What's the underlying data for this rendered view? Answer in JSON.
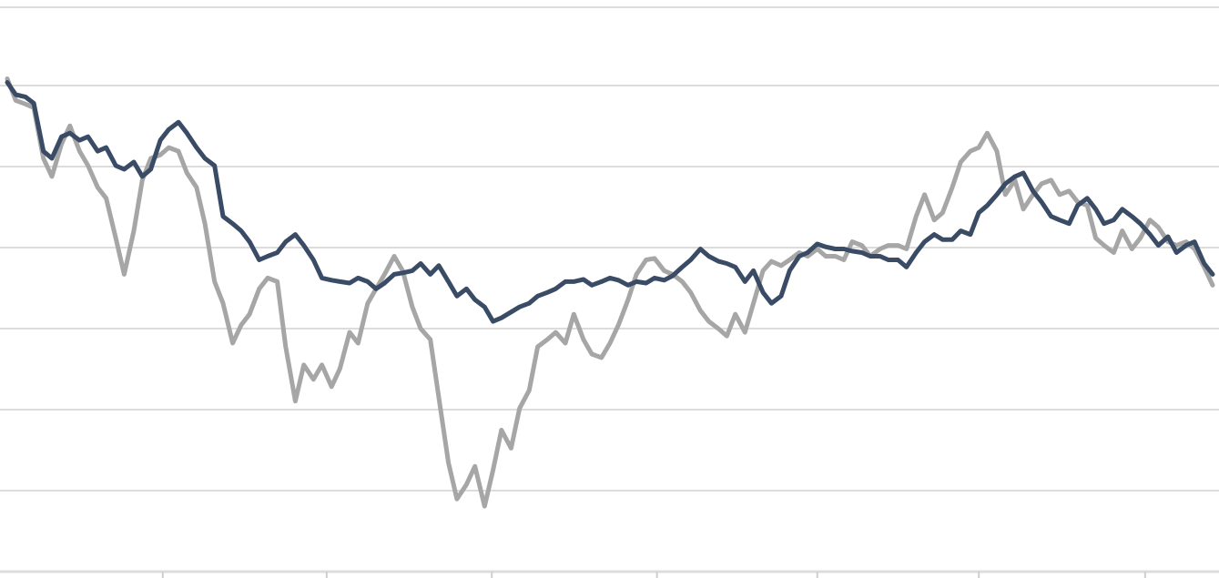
{
  "chart_data": {
    "type": "line",
    "title": "",
    "xlabel": "",
    "ylabel": "",
    "x_range": [
      0,
      1.0
    ],
    "ylim": [
      -0.5,
      6.5
    ],
    "y_gridlines": [
      0,
      1,
      2,
      3,
      4,
      5,
      6,
      7
    ],
    "x_ticks": [
      0.129,
      0.265,
      0.402,
      0.539,
      0.672,
      0.806,
      0.944
    ],
    "tick_labels_visible": false,
    "grid": true,
    "legend": "none",
    "series": [
      {
        "color": "#3a4b66",
        "x": [
          0.0,
          0.007,
          0.015,
          0.022,
          0.03,
          0.037,
          0.045,
          0.052,
          0.06,
          0.067,
          0.075,
          0.082,
          0.09,
          0.097,
          0.105,
          0.112,
          0.119,
          0.127,
          0.134,
          0.142,
          0.149,
          0.157,
          0.164,
          0.172,
          0.179,
          0.187,
          0.194,
          0.201,
          0.209,
          0.216,
          0.224,
          0.231,
          0.239,
          0.246,
          0.254,
          0.261,
          0.269,
          0.276,
          0.284,
          0.291,
          0.299,
          0.306,
          0.313,
          0.321,
          0.328,
          0.336,
          0.343,
          0.351,
          0.358,
          0.366,
          0.373,
          0.381,
          0.388,
          0.396,
          0.403,
          0.41,
          0.418,
          0.425,
          0.433,
          0.44,
          0.448,
          0.455,
          0.463,
          0.47,
          0.478,
          0.485,
          0.493,
          0.5,
          0.507,
          0.515,
          0.522,
          0.53,
          0.537,
          0.545,
          0.552,
          0.56,
          0.567,
          0.575,
          0.582,
          0.59,
          0.597,
          0.604,
          0.612,
          0.619,
          0.627,
          0.634,
          0.642,
          0.649,
          0.657,
          0.664,
          0.672,
          0.679,
          0.687,
          0.694,
          0.701,
          0.709,
          0.716,
          0.724,
          0.731,
          0.739,
          0.746,
          0.754,
          0.761,
          0.769,
          0.776,
          0.784,
          0.791,
          0.799,
          0.806,
          0.813,
          0.821,
          0.828,
          0.836,
          0.843,
          0.851,
          0.858,
          0.866,
          0.873,
          0.881,
          0.888,
          0.896,
          0.903,
          0.91,
          0.918,
          0.925,
          0.933,
          0.94,
          0.948,
          0.955,
          0.963,
          0.97,
          0.978,
          0.985,
          0.993,
          1.0
        ],
        "values": [
          6.15,
          5.98,
          5.95,
          5.86,
          5.2,
          5.1,
          5.4,
          5.45,
          5.35,
          5.4,
          5.2,
          5.25,
          5.0,
          4.95,
          5.05,
          4.85,
          4.95,
          5.35,
          5.5,
          5.6,
          5.45,
          5.25,
          5.1,
          5.0,
          4.3,
          4.2,
          4.1,
          3.95,
          3.7,
          3.75,
          3.8,
          3.95,
          4.05,
          3.9,
          3.7,
          3.45,
          3.42,
          3.4,
          3.38,
          3.45,
          3.4,
          3.3,
          3.38,
          3.5,
          3.52,
          3.55,
          3.65,
          3.5,
          3.62,
          3.4,
          3.2,
          3.3,
          3.15,
          3.05,
          2.85,
          2.9,
          2.98,
          3.05,
          3.1,
          3.2,
          3.25,
          3.3,
          3.4,
          3.4,
          3.43,
          3.35,
          3.4,
          3.45,
          3.42,
          3.35,
          3.4,
          3.38,
          3.45,
          3.42,
          3.48,
          3.6,
          3.7,
          3.85,
          3.75,
          3.68,
          3.65,
          3.6,
          3.4,
          3.55,
          3.25,
          3.1,
          3.2,
          3.55,
          3.75,
          3.8,
          3.92,
          3.88,
          3.85,
          3.85,
          3.82,
          3.8,
          3.75,
          3.75,
          3.7,
          3.7,
          3.6,
          3.8,
          3.95,
          4.05,
          3.98,
          3.98,
          4.1,
          4.05,
          4.35,
          4.45,
          4.6,
          4.75,
          4.85,
          4.9,
          4.65,
          4.5,
          4.3,
          4.25,
          4.2,
          4.45,
          4.55,
          4.4,
          4.2,
          4.25,
          4.4,
          4.3,
          4.2,
          4.05,
          3.9,
          4.02,
          3.8,
          3.9,
          3.95,
          3.65,
          3.5
        ]
      },
      {
        "color": "#a6a6a6",
        "x": [
          0.0,
          0.007,
          0.015,
          0.022,
          0.03,
          0.037,
          0.045,
          0.052,
          0.06,
          0.067,
          0.075,
          0.082,
          0.09,
          0.097,
          0.105,
          0.112,
          0.119,
          0.127,
          0.134,
          0.142,
          0.149,
          0.157,
          0.164,
          0.172,
          0.179,
          0.187,
          0.194,
          0.201,
          0.209,
          0.216,
          0.224,
          0.231,
          0.239,
          0.246,
          0.254,
          0.261,
          0.269,
          0.276,
          0.284,
          0.291,
          0.299,
          0.306,
          0.313,
          0.321,
          0.328,
          0.336,
          0.343,
          0.351,
          0.358,
          0.366,
          0.373,
          0.381,
          0.388,
          0.396,
          0.403,
          0.41,
          0.418,
          0.425,
          0.433,
          0.44,
          0.448,
          0.455,
          0.463,
          0.47,
          0.478,
          0.485,
          0.493,
          0.5,
          0.507,
          0.515,
          0.522,
          0.53,
          0.537,
          0.545,
          0.552,
          0.56,
          0.567,
          0.575,
          0.582,
          0.59,
          0.597,
          0.604,
          0.612,
          0.619,
          0.627,
          0.634,
          0.642,
          0.649,
          0.657,
          0.664,
          0.672,
          0.679,
          0.687,
          0.694,
          0.701,
          0.709,
          0.716,
          0.724,
          0.731,
          0.739,
          0.746,
          0.754,
          0.761,
          0.769,
          0.776,
          0.784,
          0.791,
          0.799,
          0.806,
          0.813,
          0.821,
          0.828,
          0.836,
          0.843,
          0.851,
          0.858,
          0.866,
          0.873,
          0.881,
          0.888,
          0.896,
          0.903,
          0.91,
          0.918,
          0.925,
          0.933,
          0.94,
          0.948,
          0.955,
          0.963,
          0.97,
          0.978,
          0.985,
          0.993,
          1.0
        ],
        "values": [
          6.2,
          5.9,
          5.85,
          5.8,
          5.1,
          4.85,
          5.3,
          5.55,
          5.2,
          5.0,
          4.7,
          4.55,
          4.0,
          3.5,
          4.1,
          4.8,
          5.1,
          5.15,
          5.25,
          5.2,
          4.9,
          4.7,
          4.2,
          3.4,
          3.1,
          2.55,
          2.8,
          2.95,
          3.3,
          3.45,
          3.4,
          2.5,
          1.75,
          2.25,
          2.05,
          2.25,
          1.95,
          2.2,
          2.7,
          2.55,
          3.1,
          3.3,
          3.5,
          3.75,
          3.55,
          3.05,
          2.75,
          2.6,
          1.8,
          0.9,
          0.4,
          0.6,
          0.85,
          0.3,
          0.8,
          1.35,
          1.1,
          1.65,
          1.9,
          2.5,
          2.6,
          2.7,
          2.55,
          2.95,
          2.6,
          2.4,
          2.35,
          2.55,
          2.8,
          3.15,
          3.5,
          3.7,
          3.72,
          3.55,
          3.5,
          3.4,
          3.25,
          3.0,
          2.85,
          2.75,
          2.65,
          2.95,
          2.7,
          3.1,
          3.55,
          3.68,
          3.62,
          3.7,
          3.8,
          3.75,
          3.85,
          3.75,
          3.75,
          3.7,
          3.95,
          3.9,
          3.75,
          3.85,
          3.9,
          3.9,
          3.85,
          4.3,
          4.6,
          4.25,
          4.35,
          4.7,
          5.05,
          5.2,
          5.25,
          5.45,
          5.2,
          4.6,
          4.8,
          4.4,
          4.6,
          4.75,
          4.8,
          4.6,
          4.65,
          4.5,
          4.45,
          4.0,
          3.9,
          3.8,
          4.1,
          3.85,
          4.0,
          4.25,
          4.15,
          3.95,
          3.9,
          3.95,
          3.85,
          3.6,
          3.35
        ]
      }
    ]
  }
}
